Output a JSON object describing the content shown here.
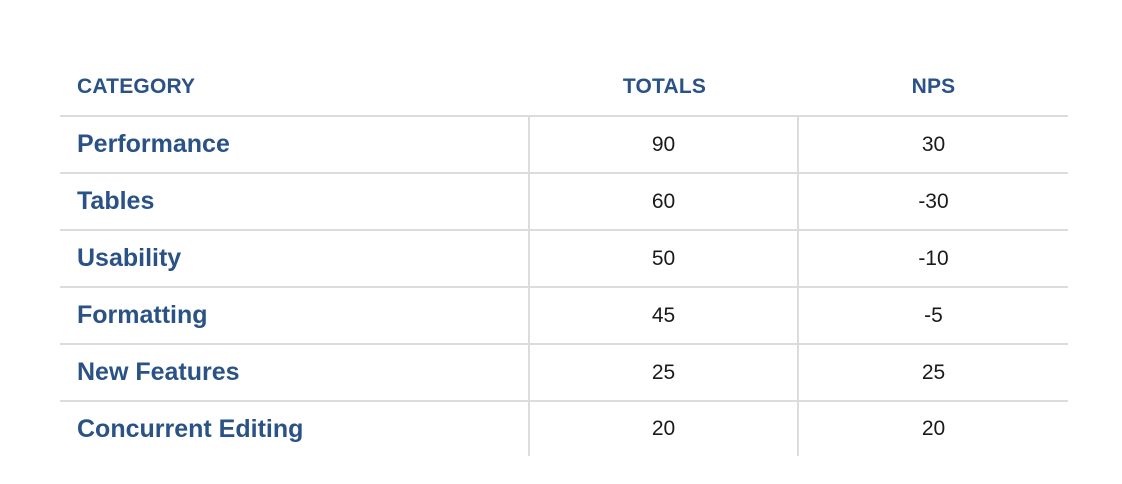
{
  "table": {
    "headers": {
      "category": "CATEGORY",
      "totals": "TOTALS",
      "nps": "NPS"
    },
    "rows": [
      {
        "category": "Performance",
        "totals": "90",
        "nps": "30"
      },
      {
        "category": "Tables",
        "totals": "60",
        "nps": "-30"
      },
      {
        "category": "Usability",
        "totals": "50",
        "nps": "-10"
      },
      {
        "category": "Formatting",
        "totals": "45",
        "nps": "-5"
      },
      {
        "category": "New Features",
        "totals": "25",
        "nps": "25"
      },
      {
        "category": "Concurrent Editing",
        "totals": "20",
        "nps": "20"
      }
    ]
  },
  "colors": {
    "header_text": "#2a5287",
    "category_text": "#2a5287",
    "value_text": "#1a1a1a",
    "grid_lines": "#dcdcdc"
  }
}
